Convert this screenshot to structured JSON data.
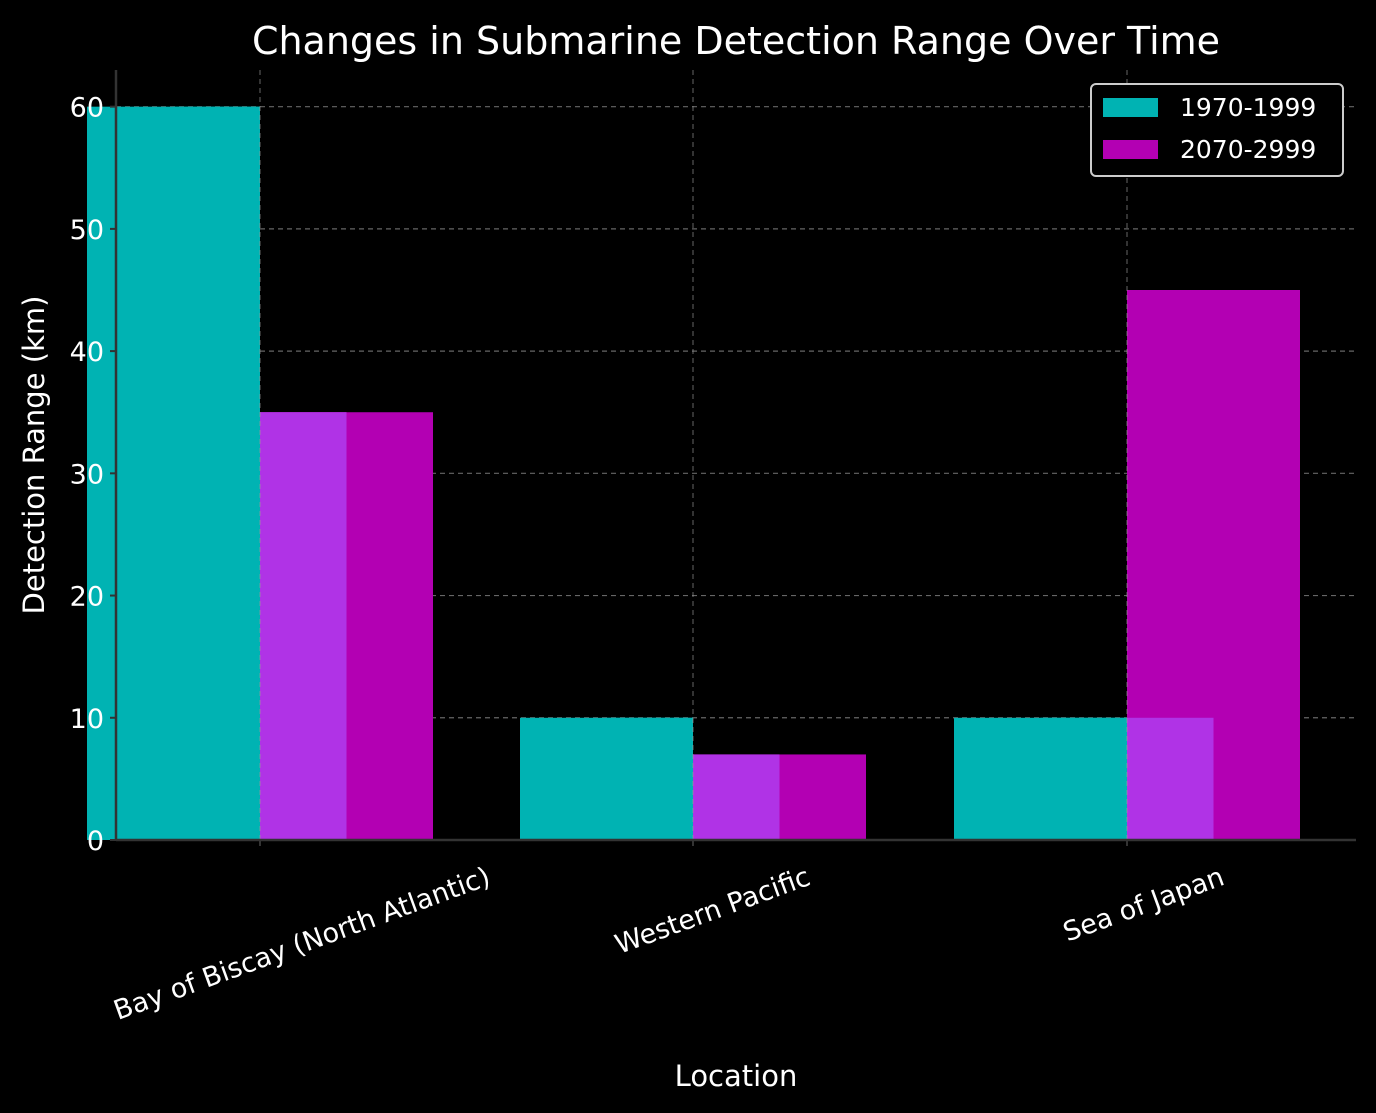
{
  "chart_data": {
    "type": "bar",
    "title": "Changes in Submarine Detection Range Over Time",
    "xlabel": "Location",
    "ylabel": "Detection Range (km)",
    "categories": [
      "Bay of Biscay (North Atlantic)",
      "Western Pacific",
      "Sea of Japan"
    ],
    "series": [
      {
        "name": "1970-1999",
        "values": [
          60,
          10,
          10
        ],
        "color": "#00b3b3"
      },
      {
        "name": "2070-2999",
        "values": [
          35,
          7,
          45
        ],
        "color": "#b300b3"
      }
    ],
    "ylim": [
      0,
      63
    ],
    "yticks": [
      0,
      10,
      20,
      30,
      40,
      50,
      60
    ],
    "grid": true,
    "legend_position": "top-right",
    "colors": {
      "background": "#000000",
      "grid": "#666666",
      "axis": "#333333",
      "text": "#ffffff",
      "overlap": "#b033e6"
    }
  }
}
